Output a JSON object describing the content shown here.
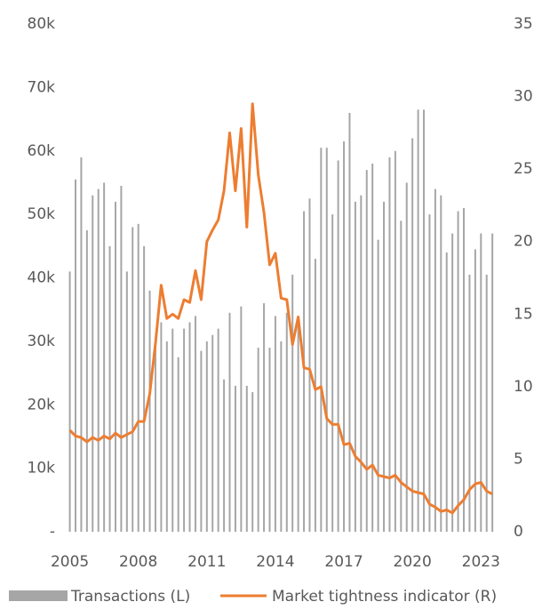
{
  "chart_data": {
    "type": "bar-line",
    "x": [
      2005,
      2005.25,
      2005.5,
      2005.75,
      2006,
      2006.25,
      2006.5,
      2006.75,
      2007,
      2007.25,
      2007.5,
      2007.75,
      2008,
      2008.25,
      2008.5,
      2008.75,
      2009,
      2009.25,
      2009.5,
      2009.75,
      2010,
      2010.25,
      2010.5,
      2010.75,
      2011,
      2011.25,
      2011.5,
      2011.75,
      2012,
      2012.25,
      2012.5,
      2012.75,
      2013,
      2013.25,
      2013.5,
      2013.75,
      2014,
      2014.25,
      2014.5,
      2014.75,
      2015,
      2015.25,
      2015.5,
      2015.75,
      2016,
      2016.25,
      2016.5,
      2016.75,
      2017,
      2017.25,
      2017.5,
      2017.75,
      2018,
      2018.25,
      2018.5,
      2018.75,
      2019,
      2019.25,
      2019.5,
      2019.75,
      2020,
      2020.25,
      2020.5,
      2020.75,
      2021,
      2021.25,
      2021.5,
      2021.75,
      2022,
      2022.25,
      2022.5,
      2022.75,
      2023,
      2023.25,
      2023.5
    ],
    "series": [
      {
        "name": "Transactions (L)",
        "color": "#a6a6a6",
        "axis": "y",
        "kind": "bar",
        "values": [
          41000,
          55500,
          59000,
          47500,
          53000,
          54000,
          55000,
          45000,
          52000,
          54500,
          41000,
          48000,
          48500,
          45000,
          38000,
          30000,
          33000,
          30000,
          32000,
          27500,
          32000,
          33000,
          34000,
          28500,
          30000,
          31000,
          32000,
          24000,
          34500,
          23000,
          35500,
          23000,
          22000,
          29000,
          36000,
          29000,
          34000,
          30000,
          34500,
          40500,
          34000,
          50500,
          52500,
          43000,
          60500,
          60500,
          50000,
          58500,
          61500,
          66000,
          52000,
          53000,
          57000,
          58000,
          46000,
          52000,
          59000,
          60000,
          49000,
          55000,
          62000,
          66500,
          66500,
          50000,
          54000,
          53000,
          44000,
          47000,
          50500,
          51000,
          40500,
          44500,
          47000,
          40500,
          47000
        ]
      },
      {
        "name": "Market tightness indicator (R)",
        "color": "#ed7d31",
        "axis": "y2",
        "kind": "line",
        "values": [
          7.0,
          6.6,
          6.5,
          6.2,
          6.5,
          6.3,
          6.6,
          6.4,
          6.8,
          6.5,
          6.7,
          6.9,
          7.6,
          7.6,
          9.5,
          13,
          17,
          14.7,
          15.0,
          14.7,
          16,
          15.8,
          18,
          16,
          20,
          20.8,
          21.5,
          23.5,
          27.5,
          23.5,
          27.8,
          21,
          29.5,
          24.6,
          22,
          18.4,
          19.2,
          16.1,
          16,
          12.9,
          14.8,
          11.3,
          11.2,
          9.8,
          10,
          7.8,
          7.4,
          7.4,
          6,
          6.1,
          5.2,
          4.8,
          4.3,
          4.6,
          3.9,
          3.8,
          3.7,
          3.9,
          3.4,
          3.1,
          2.8,
          2.7,
          2.6,
          1.9,
          1.7,
          1.4,
          1.5,
          1.3,
          1.8,
          2.2,
          2.9,
          3.3,
          3.4,
          2.8,
          2.6
        ]
      }
    ],
    "xlim": [
      2004.9,
      2023.65
    ],
    "xticks": [
      2005,
      2008,
      2011,
      2014,
      2017,
      2020,
      2023
    ],
    "ylim": [
      0,
      80000
    ],
    "yticks": [
      {
        "value": 0,
        "label": "-"
      },
      {
        "value": 10000,
        "label": "10k"
      },
      {
        "value": 20000,
        "label": "20k"
      },
      {
        "value": 30000,
        "label": "30k"
      },
      {
        "value": 40000,
        "label": "40k"
      },
      {
        "value": 50000,
        "label": "50k"
      },
      {
        "value": 60000,
        "label": "60k"
      },
      {
        "value": 70000,
        "label": "70k"
      },
      {
        "value": 80000,
        "label": "80k"
      }
    ],
    "y2lim": [
      0,
      35
    ],
    "y2ticks": [
      0,
      5,
      10,
      15,
      20,
      25,
      30,
      35
    ],
    "legend": "bottom"
  }
}
